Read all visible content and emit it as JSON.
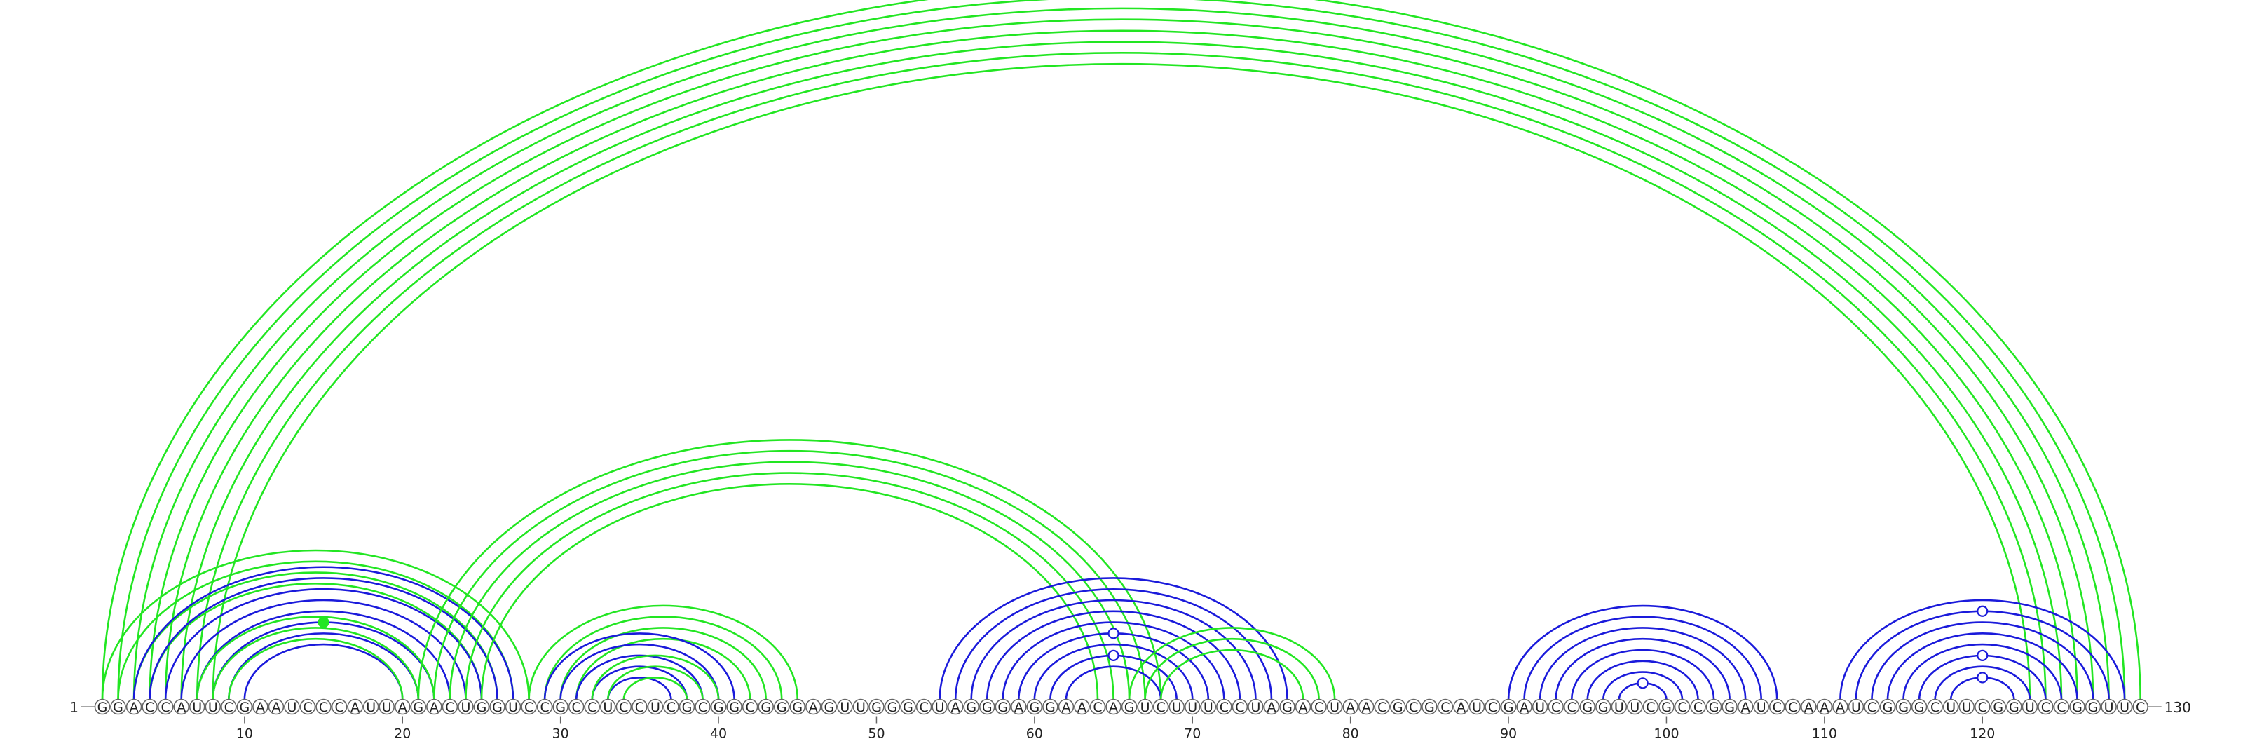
{
  "sequence": "GGACCAUUCGAAUCCCAUUAGACUGGUCCGCCUCCUCGCGGCGGGAGUUGGGCUAGGGAGGAACAGUCUUUCCUAGACUAACGCGCAUCGAUCCGGUUCGCCGGAUCCAAAUCGGGCUUCGGUCCGGUUC",
  "start_label": "1",
  "end_label": "130",
  "tick_labels": [
    "10",
    "20",
    "30",
    "40",
    "50",
    "60",
    "70",
    "80",
    "90",
    "100",
    "110",
    "120"
  ],
  "colors": {
    "blue": "#1a1adb",
    "green": "#22e622"
  },
  "arcs": [
    {
      "color": "green",
      "pairs": [
        [
          1,
          130
        ],
        [
          2,
          129
        ],
        [
          3,
          128
        ],
        [
          4,
          127
        ],
        [
          5,
          126
        ],
        [
          6,
          125
        ],
        [
          7,
          124
        ],
        [
          8,
          123
        ]
      ]
    },
    {
      "color": "green",
      "pairs": [
        [
          1,
          28
        ],
        [
          2,
          27
        ],
        [
          3,
          26
        ],
        [
          4,
          25
        ]
      ]
    },
    {
      "color": "blue",
      "pairs": [
        [
          3,
          27
        ],
        [
          4,
          26
        ],
        [
          5,
          25
        ],
        [
          6,
          24
        ],
        [
          7,
          23
        ],
        [
          8,
          22
        ],
        [
          9,
          21
        ],
        [
          10,
          20
        ]
      ]
    },
    {
      "color": "green",
      "pairs": [
        [
          7,
          22
        ],
        [
          8,
          21
        ],
        [
          9,
          20
        ]
      ]
    },
    {
      "color": "green",
      "pairs": [
        [
          21,
          68
        ],
        [
          22,
          67
        ],
        [
          23,
          66
        ],
        [
          24,
          65
        ],
        [
          25,
          64
        ]
      ]
    },
    {
      "color": "green",
      "pairs": [
        [
          28,
          45
        ],
        [
          29,
          44
        ],
        [
          30,
          43
        ],
        [
          31,
          42
        ]
      ]
    },
    {
      "color": "blue",
      "pairs": [
        [
          29,
          41
        ],
        [
          30,
          40
        ],
        [
          31,
          39
        ],
        [
          32,
          38
        ],
        [
          33,
          37
        ]
      ]
    },
    {
      "color": "green",
      "pairs": [
        [
          32,
          40
        ],
        [
          33,
          39
        ],
        [
          34,
          38
        ]
      ]
    },
    {
      "color": "blue",
      "pairs": [
        [
          54,
          76
        ],
        [
          55,
          75
        ],
        [
          56,
          74
        ],
        [
          57,
          73
        ],
        [
          58,
          72
        ],
        [
          59,
          71
        ],
        [
          60,
          70
        ],
        [
          61,
          69
        ],
        [
          62,
          68
        ]
      ]
    },
    {
      "color": "green",
      "pairs": [
        [
          66,
          79
        ],
        [
          67,
          78
        ],
        [
          68,
          77
        ]
      ]
    },
    {
      "color": "blue",
      "pairs": [
        [
          90,
          107
        ],
        [
          91,
          106
        ],
        [
          92,
          105
        ],
        [
          93,
          104
        ],
        [
          94,
          103
        ],
        [
          95,
          102
        ],
        [
          96,
          101
        ],
        [
          97,
          100
        ]
      ]
    },
    {
      "color": "blue",
      "pairs": [
        [
          111,
          129
        ],
        [
          112,
          128
        ],
        [
          113,
          127
        ],
        [
          114,
          126
        ],
        [
          115,
          125
        ],
        [
          116,
          124
        ],
        [
          117,
          123
        ],
        [
          118,
          122
        ]
      ]
    }
  ],
  "markers": [
    {
      "base_i": 1,
      "base_j": 130,
      "color": "green",
      "filled": false
    },
    {
      "base_i": 8,
      "base_j": 22,
      "color": "green",
      "filled": true
    },
    {
      "base_i": 59,
      "base_j": 71,
      "color": "blue",
      "filled": false
    },
    {
      "base_i": 61,
      "base_j": 69,
      "color": "blue",
      "filled": false
    },
    {
      "base_i": 97,
      "base_j": 100,
      "color": "blue",
      "filled": false
    },
    {
      "base_i": 112,
      "base_j": 128,
      "color": "blue",
      "filled": false
    },
    {
      "base_i": 116,
      "base_j": 124,
      "color": "blue",
      "filled": false
    },
    {
      "base_i": 118,
      "base_j": 122,
      "color": "blue",
      "filled": false
    }
  ]
}
